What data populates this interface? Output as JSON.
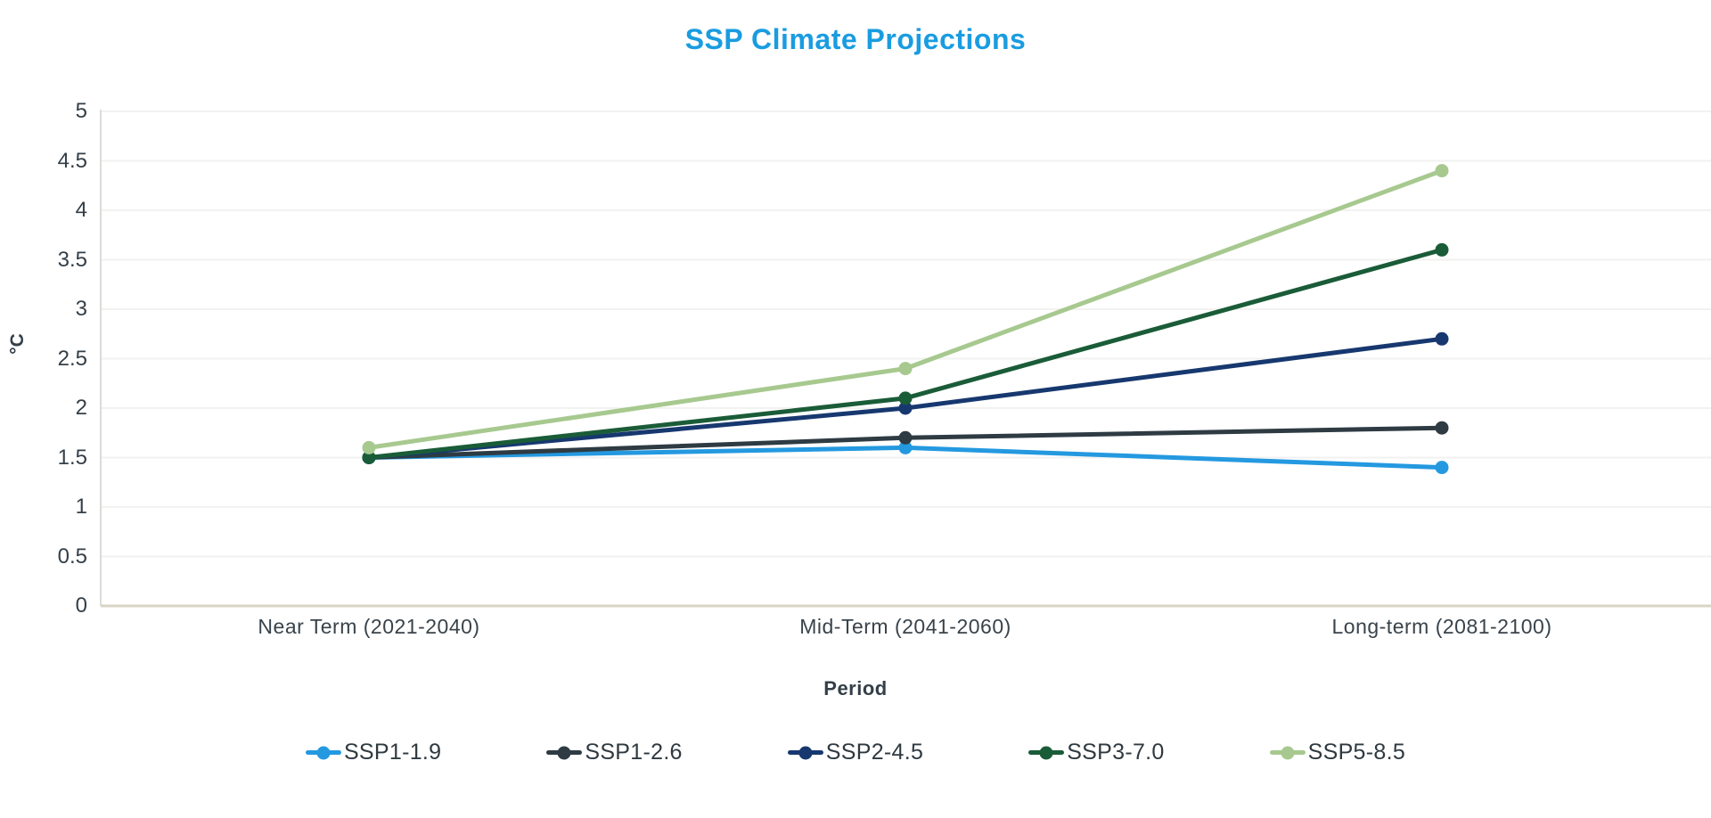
{
  "chart_data": {
    "type": "line",
    "title": "SSP Climate Projections",
    "xlabel": "Period",
    "ylabel": "°C",
    "categories": [
      "Near Term (2021-2040)",
      "Mid-Term (2041-2060)",
      "Long-term (2081-2100)"
    ],
    "series": [
      {
        "name": "SSP1-1.9",
        "color": "#2499E0",
        "values": [
          1.5,
          1.6,
          1.4
        ]
      },
      {
        "name": "SSP1-2.6",
        "color": "#2E3B43",
        "values": [
          1.5,
          1.7,
          1.8
        ]
      },
      {
        "name": "SSP2-4.5",
        "color": "#17386F",
        "values": [
          1.5,
          2.0,
          2.7
        ]
      },
      {
        "name": "SSP3-7.0",
        "color": "#1A5C38",
        "values": [
          1.5,
          2.1,
          3.6
        ]
      },
      {
        "name": "SSP5-8.5",
        "color": "#A7C98F",
        "values": [
          1.6,
          2.4,
          4.4
        ]
      }
    ],
    "ylim": [
      0,
      5
    ],
    "ytick_step": 0.5,
    "ytick_labels": [
      "0",
      "0.5",
      "1",
      "1.5",
      "2",
      "2.5",
      "3",
      "3.5",
      "4",
      "4.5",
      "5"
    ],
    "grid": "horizontal",
    "legend_position": "bottom"
  },
  "colors": {
    "title": "#1A9CE0",
    "axis_text": "#343F48",
    "gridline": "#F2F2F0",
    "y_axis_line": "#DBDBD9",
    "x_axis_line": "#D9D5C6",
    "background": "#FFFFFF"
  }
}
